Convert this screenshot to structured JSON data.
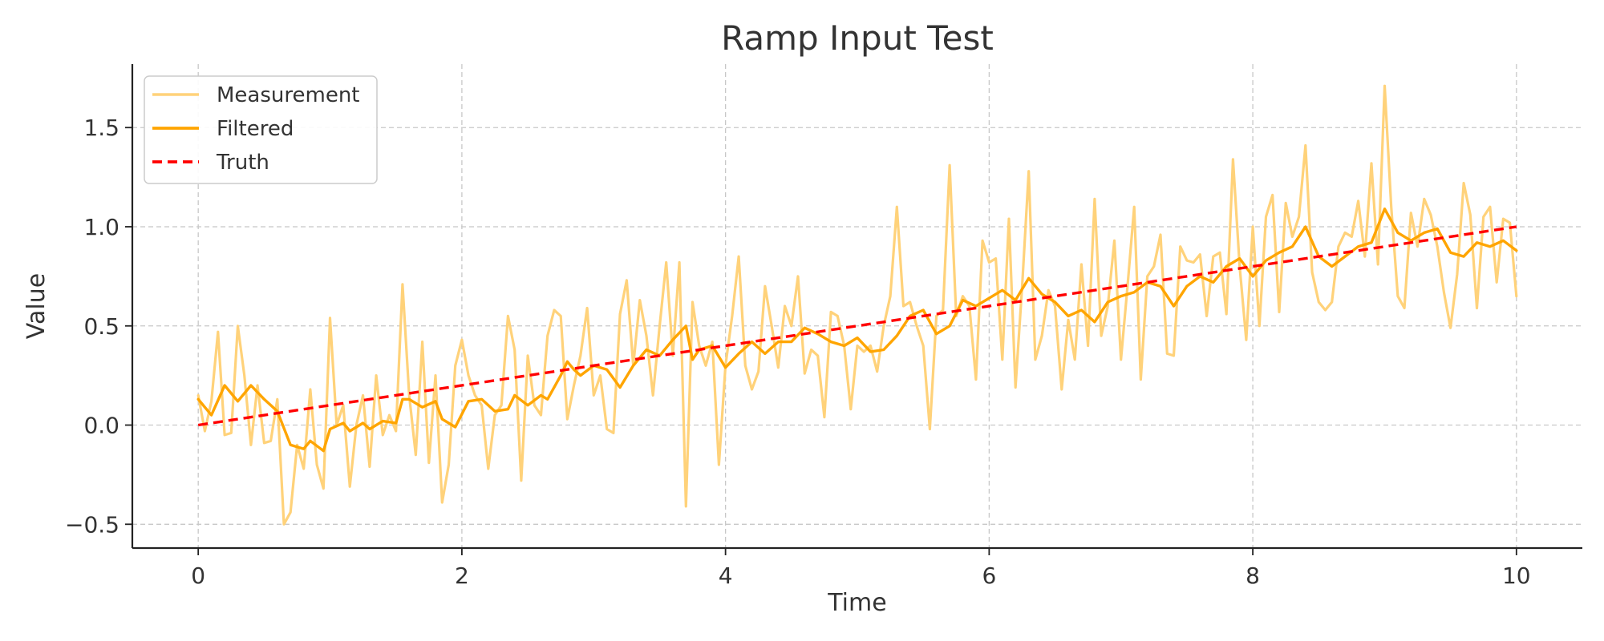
{
  "chart_data": {
    "type": "line",
    "title": "Ramp Input Test",
    "xlabel": "Time",
    "ylabel": "Value",
    "xlim": [
      -0.5,
      10.5
    ],
    "ylim": [
      -0.62,
      1.82
    ],
    "x_ticks": [
      0,
      2,
      4,
      6,
      8,
      10
    ],
    "x_tick_labels": [
      "0",
      "2",
      "4",
      "6",
      "8",
      "10"
    ],
    "y_ticks": [
      -0.5,
      0.0,
      0.5,
      1.0,
      1.5
    ],
    "y_tick_labels": [
      "−0.5",
      "0.0",
      "0.5",
      "1.0",
      "1.5"
    ],
    "grid": true,
    "legend_position": "upper-left",
    "x": {
      "start": 0,
      "end": 10,
      "count": 201
    },
    "series": [
      {
        "name": "Measurement",
        "color": "#FFD27A",
        "style": "solid",
        "knots": [
          [
            0,
            0.15
          ],
          [
            0.05,
            -0.03
          ],
          [
            0.1,
            0.12
          ],
          [
            0.15,
            0.47
          ],
          [
            0.2,
            -0.05
          ],
          [
            0.25,
            -0.04
          ],
          [
            0.3,
            0.5
          ],
          [
            0.35,
            0.25
          ],
          [
            0.4,
            -0.1
          ],
          [
            0.45,
            0.2
          ],
          [
            0.5,
            -0.09
          ],
          [
            0.55,
            -0.08
          ],
          [
            0.6,
            0.13
          ],
          [
            0.65,
            -0.5
          ],
          [
            0.7,
            -0.44
          ],
          [
            0.75,
            -0.1
          ],
          [
            0.8,
            -0.22
          ],
          [
            0.85,
            0.18
          ],
          [
            0.9,
            -0.2
          ],
          [
            0.95,
            -0.32
          ],
          [
            1.0,
            0.54
          ],
          [
            1.05,
            0.0
          ],
          [
            1.1,
            0.1
          ],
          [
            1.15,
            -0.31
          ],
          [
            1.2,
            0.0
          ],
          [
            1.25,
            0.15
          ],
          [
            1.3,
            -0.21
          ],
          [
            1.35,
            0.25
          ],
          [
            1.4,
            -0.05
          ],
          [
            1.45,
            0.05
          ],
          [
            1.5,
            -0.03
          ],
          [
            1.55,
            0.71
          ],
          [
            1.6,
            0.15
          ],
          [
            1.65,
            -0.15
          ],
          [
            1.7,
            0.42
          ],
          [
            1.75,
            -0.19
          ],
          [
            1.8,
            0.25
          ],
          [
            1.85,
            -0.39
          ],
          [
            1.9,
            -0.2
          ],
          [
            1.95,
            0.3
          ],
          [
            2.0,
            0.43
          ],
          [
            2.05,
            0.25
          ],
          [
            2.1,
            0.15
          ],
          [
            2.15,
            0.1
          ],
          [
            2.2,
            -0.22
          ],
          [
            2.25,
            0.05
          ],
          [
            2.3,
            0.1
          ],
          [
            2.35,
            0.55
          ],
          [
            2.4,
            0.38
          ],
          [
            2.45,
            -0.28
          ],
          [
            2.5,
            0.35
          ],
          [
            2.55,
            0.1
          ],
          [
            2.6,
            0.05
          ],
          [
            2.65,
            0.45
          ],
          [
            2.7,
            0.58
          ],
          [
            2.75,
            0.55
          ],
          [
            2.8,
            0.03
          ],
          [
            2.85,
            0.2
          ],
          [
            2.9,
            0.35
          ],
          [
            2.95,
            0.59
          ],
          [
            3.0,
            0.15
          ],
          [
            3.05,
            0.25
          ],
          [
            3.1,
            -0.02
          ],
          [
            3.15,
            -0.04
          ],
          [
            3.2,
            0.56
          ],
          [
            3.25,
            0.73
          ],
          [
            3.3,
            0.3
          ],
          [
            3.35,
            0.63
          ],
          [
            3.4,
            0.45
          ],
          [
            3.45,
            0.15
          ],
          [
            3.5,
            0.5
          ],
          [
            3.55,
            0.82
          ],
          [
            3.6,
            0.35
          ],
          [
            3.65,
            0.82
          ],
          [
            3.7,
            -0.41
          ],
          [
            3.75,
            0.62
          ],
          [
            3.8,
            0.4
          ],
          [
            3.85,
            0.3
          ],
          [
            3.9,
            0.42
          ],
          [
            3.95,
            -0.2
          ],
          [
            4.0,
            0.3
          ],
          [
            4.05,
            0.55
          ],
          [
            4.1,
            0.85
          ],
          [
            4.15,
            0.3
          ],
          [
            4.2,
            0.18
          ],
          [
            4.25,
            0.27
          ],
          [
            4.3,
            0.7
          ],
          [
            4.35,
            0.5
          ],
          [
            4.4,
            0.29
          ],
          [
            4.45,
            0.6
          ],
          [
            4.5,
            0.5
          ],
          [
            4.55,
            0.75
          ],
          [
            4.6,
            0.26
          ],
          [
            4.65,
            0.38
          ],
          [
            4.7,
            0.35
          ],
          [
            4.75,
            0.04
          ],
          [
            4.8,
            0.57
          ],
          [
            4.85,
            0.55
          ],
          [
            4.9,
            0.4
          ],
          [
            4.95,
            0.08
          ],
          [
            5.0,
            0.4
          ],
          [
            5.05,
            0.37
          ],
          [
            5.1,
            0.4
          ],
          [
            5.15,
            0.27
          ],
          [
            5.2,
            0.5
          ],
          [
            5.25,
            0.65
          ],
          [
            5.3,
            1.1
          ],
          [
            5.35,
            0.6
          ],
          [
            5.4,
            0.62
          ],
          [
            5.45,
            0.5
          ],
          [
            5.5,
            0.4
          ],
          [
            5.55,
            -0.02
          ],
          [
            5.6,
            0.55
          ],
          [
            5.65,
            0.58
          ],
          [
            5.7,
            1.31
          ],
          [
            5.75,
            0.55
          ],
          [
            5.8,
            0.65
          ],
          [
            5.85,
            0.6
          ],
          [
            5.9,
            0.23
          ],
          [
            5.95,
            0.93
          ],
          [
            6.0,
            0.82
          ],
          [
            6.05,
            0.84
          ],
          [
            6.1,
            0.33
          ],
          [
            6.15,
            1.04
          ],
          [
            6.2,
            0.19
          ],
          [
            6.25,
            0.7
          ],
          [
            6.3,
            1.28
          ],
          [
            6.35,
            0.33
          ],
          [
            6.4,
            0.45
          ],
          [
            6.45,
            0.68
          ],
          [
            6.5,
            0.6
          ],
          [
            6.55,
            0.18
          ],
          [
            6.6,
            0.53
          ],
          [
            6.65,
            0.33
          ],
          [
            6.7,
            0.81
          ],
          [
            6.75,
            0.4
          ],
          [
            6.8,
            1.14
          ],
          [
            6.85,
            0.45
          ],
          [
            6.9,
            0.6
          ],
          [
            6.95,
            0.93
          ],
          [
            7.0,
            0.33
          ],
          [
            7.05,
            0.7
          ],
          [
            7.1,
            1.1
          ],
          [
            7.15,
            0.23
          ],
          [
            7.2,
            0.75
          ],
          [
            7.25,
            0.8
          ],
          [
            7.3,
            0.96
          ],
          [
            7.35,
            0.36
          ],
          [
            7.4,
            0.35
          ],
          [
            7.45,
            0.9
          ],
          [
            7.5,
            0.83
          ],
          [
            7.55,
            0.82
          ],
          [
            7.6,
            0.86
          ],
          [
            7.65,
            0.55
          ],
          [
            7.7,
            0.85
          ],
          [
            7.75,
            0.87
          ],
          [
            7.8,
            0.56
          ],
          [
            7.85,
            1.34
          ],
          [
            7.9,
            0.8
          ],
          [
            7.95,
            0.43
          ],
          [
            8.0,
            1.0
          ],
          [
            8.05,
            0.5
          ],
          [
            8.1,
            1.05
          ],
          [
            8.15,
            1.16
          ],
          [
            8.2,
            0.57
          ],
          [
            8.25,
            1.12
          ],
          [
            8.3,
            0.95
          ],
          [
            8.35,
            1.05
          ],
          [
            8.4,
            1.41
          ],
          [
            8.45,
            0.77
          ],
          [
            8.5,
            0.62
          ],
          [
            8.55,
            0.58
          ],
          [
            8.6,
            0.62
          ],
          [
            8.65,
            0.9
          ],
          [
            8.7,
            0.97
          ],
          [
            8.75,
            0.95
          ],
          [
            8.8,
            1.13
          ],
          [
            8.85,
            0.85
          ],
          [
            8.9,
            1.32
          ],
          [
            8.95,
            0.81
          ],
          [
            9.0,
            1.71
          ],
          [
            9.05,
            1.1
          ],
          [
            9.1,
            0.65
          ],
          [
            9.15,
            0.59
          ],
          [
            9.2,
            1.07
          ],
          [
            9.25,
            0.9
          ],
          [
            9.3,
            1.14
          ],
          [
            9.35,
            1.06
          ],
          [
            9.4,
            0.9
          ],
          [
            9.45,
            0.67
          ],
          [
            9.5,
            0.49
          ],
          [
            9.55,
            0.76
          ],
          [
            9.6,
            1.22
          ],
          [
            9.65,
            1.06
          ],
          [
            9.7,
            0.59
          ],
          [
            9.75,
            1.05
          ],
          [
            9.8,
            1.1
          ],
          [
            9.85,
            0.72
          ],
          [
            9.9,
            1.04
          ],
          [
            9.95,
            1.02
          ],
          [
            10.0,
            0.65
          ]
        ]
      },
      {
        "name": "Filtered",
        "color": "#FFA500",
        "style": "solid",
        "knots": [
          [
            0,
            0.13
          ],
          [
            0.1,
            0.05
          ],
          [
            0.2,
            0.2
          ],
          [
            0.3,
            0.12
          ],
          [
            0.4,
            0.2
          ],
          [
            0.5,
            0.13
          ],
          [
            0.6,
            0.07
          ],
          [
            0.7,
            -0.1
          ],
          [
            0.8,
            -0.12
          ],
          [
            0.85,
            -0.08
          ],
          [
            0.95,
            -0.13
          ],
          [
            1.0,
            -0.02
          ],
          [
            1.1,
            0.01
          ],
          [
            1.15,
            -0.03
          ],
          [
            1.25,
            0.01
          ],
          [
            1.3,
            -0.02
          ],
          [
            1.4,
            0.02
          ],
          [
            1.5,
            0.01
          ],
          [
            1.55,
            0.13
          ],
          [
            1.6,
            0.13
          ],
          [
            1.7,
            0.09
          ],
          [
            1.8,
            0.12
          ],
          [
            1.85,
            0.03
          ],
          [
            1.95,
            -0.01
          ],
          [
            2.05,
            0.12
          ],
          [
            2.15,
            0.13
          ],
          [
            2.25,
            0.07
          ],
          [
            2.35,
            0.08
          ],
          [
            2.4,
            0.15
          ],
          [
            2.5,
            0.1
          ],
          [
            2.6,
            0.15
          ],
          [
            2.65,
            0.13
          ],
          [
            2.75,
            0.25
          ],
          [
            2.8,
            0.32
          ],
          [
            2.85,
            0.28
          ],
          [
            2.9,
            0.25
          ],
          [
            3.0,
            0.3
          ],
          [
            3.1,
            0.28
          ],
          [
            3.2,
            0.19
          ],
          [
            3.3,
            0.3
          ],
          [
            3.4,
            0.38
          ],
          [
            3.5,
            0.35
          ],
          [
            3.6,
            0.43
          ],
          [
            3.7,
            0.5
          ],
          [
            3.75,
            0.33
          ],
          [
            3.8,
            0.38
          ],
          [
            3.9,
            0.4
          ],
          [
            4.0,
            0.29
          ],
          [
            4.1,
            0.36
          ],
          [
            4.2,
            0.42
          ],
          [
            4.3,
            0.36
          ],
          [
            4.4,
            0.42
          ],
          [
            4.5,
            0.42
          ],
          [
            4.6,
            0.49
          ],
          [
            4.7,
            0.46
          ],
          [
            4.8,
            0.42
          ],
          [
            4.9,
            0.4
          ],
          [
            5.0,
            0.44
          ],
          [
            5.1,
            0.37
          ],
          [
            5.2,
            0.38
          ],
          [
            5.3,
            0.45
          ],
          [
            5.4,
            0.55
          ],
          [
            5.5,
            0.58
          ],
          [
            5.6,
            0.46
          ],
          [
            5.7,
            0.5
          ],
          [
            5.8,
            0.63
          ],
          [
            5.9,
            0.6
          ],
          [
            6.0,
            0.64
          ],
          [
            6.1,
            0.68
          ],
          [
            6.2,
            0.63
          ],
          [
            6.3,
            0.74
          ],
          [
            6.4,
            0.66
          ],
          [
            6.5,
            0.62
          ],
          [
            6.6,
            0.55
          ],
          [
            6.7,
            0.58
          ],
          [
            6.8,
            0.52
          ],
          [
            6.9,
            0.62
          ],
          [
            7.0,
            0.65
          ],
          [
            7.1,
            0.67
          ],
          [
            7.2,
            0.72
          ],
          [
            7.3,
            0.7
          ],
          [
            7.4,
            0.6
          ],
          [
            7.5,
            0.7
          ],
          [
            7.6,
            0.75
          ],
          [
            7.7,
            0.72
          ],
          [
            7.8,
            0.8
          ],
          [
            7.9,
            0.84
          ],
          [
            8.0,
            0.75
          ],
          [
            8.1,
            0.83
          ],
          [
            8.2,
            0.87
          ],
          [
            8.3,
            0.9
          ],
          [
            8.4,
            1.0
          ],
          [
            8.5,
            0.85
          ],
          [
            8.6,
            0.8
          ],
          [
            8.7,
            0.85
          ],
          [
            8.8,
            0.9
          ],
          [
            8.9,
            0.92
          ],
          [
            9.0,
            1.09
          ],
          [
            9.1,
            0.97
          ],
          [
            9.2,
            0.93
          ],
          [
            9.3,
            0.97
          ],
          [
            9.4,
            0.99
          ],
          [
            9.5,
            0.87
          ],
          [
            9.6,
            0.85
          ],
          [
            9.7,
            0.92
          ],
          [
            9.8,
            0.9
          ],
          [
            9.9,
            0.93
          ],
          [
            10.0,
            0.88
          ]
        ]
      },
      {
        "name": "Truth",
        "color": "#FF0000",
        "style": "dashed",
        "knots": [
          [
            0,
            0
          ],
          [
            10,
            1
          ]
        ]
      }
    ]
  }
}
